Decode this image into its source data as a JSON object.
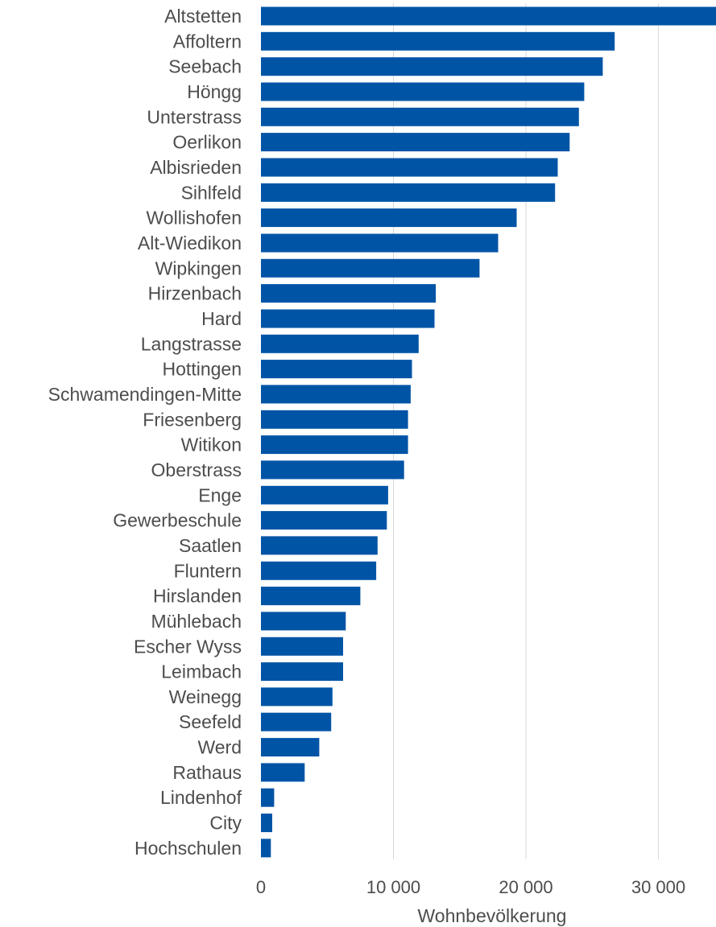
{
  "chart_data": {
    "type": "bar",
    "orientation": "horizontal",
    "title": "",
    "xlabel": "Wohnbevölkerung",
    "ylabel": "",
    "xlim": [
      0,
      34500
    ],
    "xticks": [
      0,
      10000,
      20000,
      30000
    ],
    "xtick_labels": [
      "0",
      "10 000",
      "20 000",
      "30 000"
    ],
    "grid": "vertical",
    "bar_color": "#0054a6",
    "categories": [
      "Altstetten",
      "Affoltern",
      "Seebach",
      "Höngg",
      "Unterstrass",
      "Oerlikon",
      "Albisrieden",
      "Sihlfeld",
      "Wollishofen",
      "Alt-Wiedikon",
      "Wipkingen",
      "Hirzenbach",
      "Hard",
      "Langstrasse",
      "Hottingen",
      "Schwamendingen-Mitte",
      "Friesenberg",
      "Witikon",
      "Oberstrass",
      "Enge",
      "Gewerbeschule",
      "Saatlen",
      "Fluntern",
      "Hirslanden",
      "Mühlebach",
      "Escher Wyss",
      "Leimbach",
      "Weinegg",
      "Seefeld",
      "Werd",
      "Rathaus",
      "Lindenhof",
      "City",
      "Hochschulen"
    ],
    "values": [
      34400,
      26700,
      25800,
      24400,
      24000,
      23300,
      22400,
      22200,
      19300,
      17900,
      16500,
      13200,
      13100,
      11900,
      11400,
      11300,
      11100,
      11100,
      10800,
      9600,
      9500,
      8800,
      8700,
      7500,
      6400,
      6200,
      6200,
      5400,
      5300,
      4400,
      3300,
      1000,
      850,
      750
    ]
  }
}
